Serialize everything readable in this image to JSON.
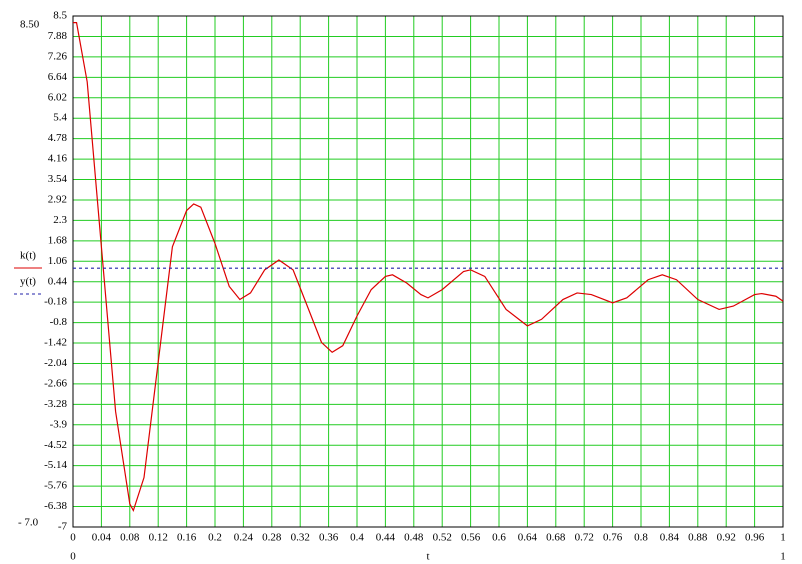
{
  "chart_data": {
    "type": "line",
    "x_label": "t",
    "xlim": [
      0,
      1
    ],
    "ylim": [
      -7,
      8.5
    ],
    "xlim_labels": [
      "0",
      "1"
    ],
    "ylim_labels": [
      "- 7.0",
      "8.50"
    ],
    "xticks": [
      0,
      0.04,
      0.08,
      0.12,
      0.16,
      0.2,
      0.24,
      0.28,
      0.32,
      0.36,
      0.4,
      0.44,
      0.48,
      0.52,
      0.56,
      0.6,
      0.64,
      0.68,
      0.72,
      0.76,
      0.8,
      0.84,
      0.88,
      0.92,
      0.96,
      1
    ],
    "yticks": [
      8.5,
      7.88,
      7.26,
      6.64,
      6.02,
      5.4,
      4.78,
      4.16,
      3.54,
      2.92,
      2.3,
      1.68,
      1.06,
      0.44,
      -0.18,
      -0.8,
      -1.42,
      -2.04,
      -2.66,
      -3.28,
      -3.9,
      -4.52,
      -5.14,
      -5.76,
      -6.38,
      -7
    ],
    "grid": true,
    "grid_color": "#22cc22",
    "series": [
      {
        "name": "k(t)",
        "color": "#dd0000",
        "dash": false,
        "x": [
          0,
          0.005,
          0.02,
          0.04,
          0.06,
          0.08,
          0.085,
          0.1,
          0.12,
          0.14,
          0.16,
          0.17,
          0.18,
          0.2,
          0.22,
          0.235,
          0.25,
          0.27,
          0.29,
          0.31,
          0.33,
          0.35,
          0.365,
          0.38,
          0.4,
          0.42,
          0.44,
          0.45,
          0.47,
          0.49,
          0.5,
          0.52,
          0.55,
          0.56,
          0.58,
          0.61,
          0.64,
          0.66,
          0.69,
          0.71,
          0.73,
          0.76,
          0.78,
          0.81,
          0.83,
          0.85,
          0.88,
          0.91,
          0.93,
          0.96,
          0.97,
          0.99,
          1
        ],
        "values": [
          8.3,
          8.3,
          6.5,
          1.5,
          -3.5,
          -6.3,
          -6.5,
          -5.5,
          -2,
          1.5,
          2.6,
          2.8,
          2.7,
          1.6,
          0.3,
          -0.1,
          0.1,
          0.8,
          1.1,
          0.8,
          -0.3,
          -1.4,
          -1.7,
          -1.5,
          -0.6,
          0.2,
          0.6,
          0.65,
          0.4,
          0.05,
          -0.05,
          0.2,
          0.75,
          0.8,
          0.6,
          -0.4,
          -0.9,
          -0.7,
          -0.1,
          0.1,
          0.05,
          -0.2,
          -0.05,
          0.5,
          0.65,
          0.5,
          -0.1,
          -0.4,
          -0.3,
          0.05,
          0.08,
          0,
          -0.15
        ]
      },
      {
        "name": "y(t)",
        "color": "#2222aa",
        "dash": true,
        "x": [
          0,
          1
        ],
        "values": [
          0.85,
          0.85
        ]
      }
    ]
  }
}
